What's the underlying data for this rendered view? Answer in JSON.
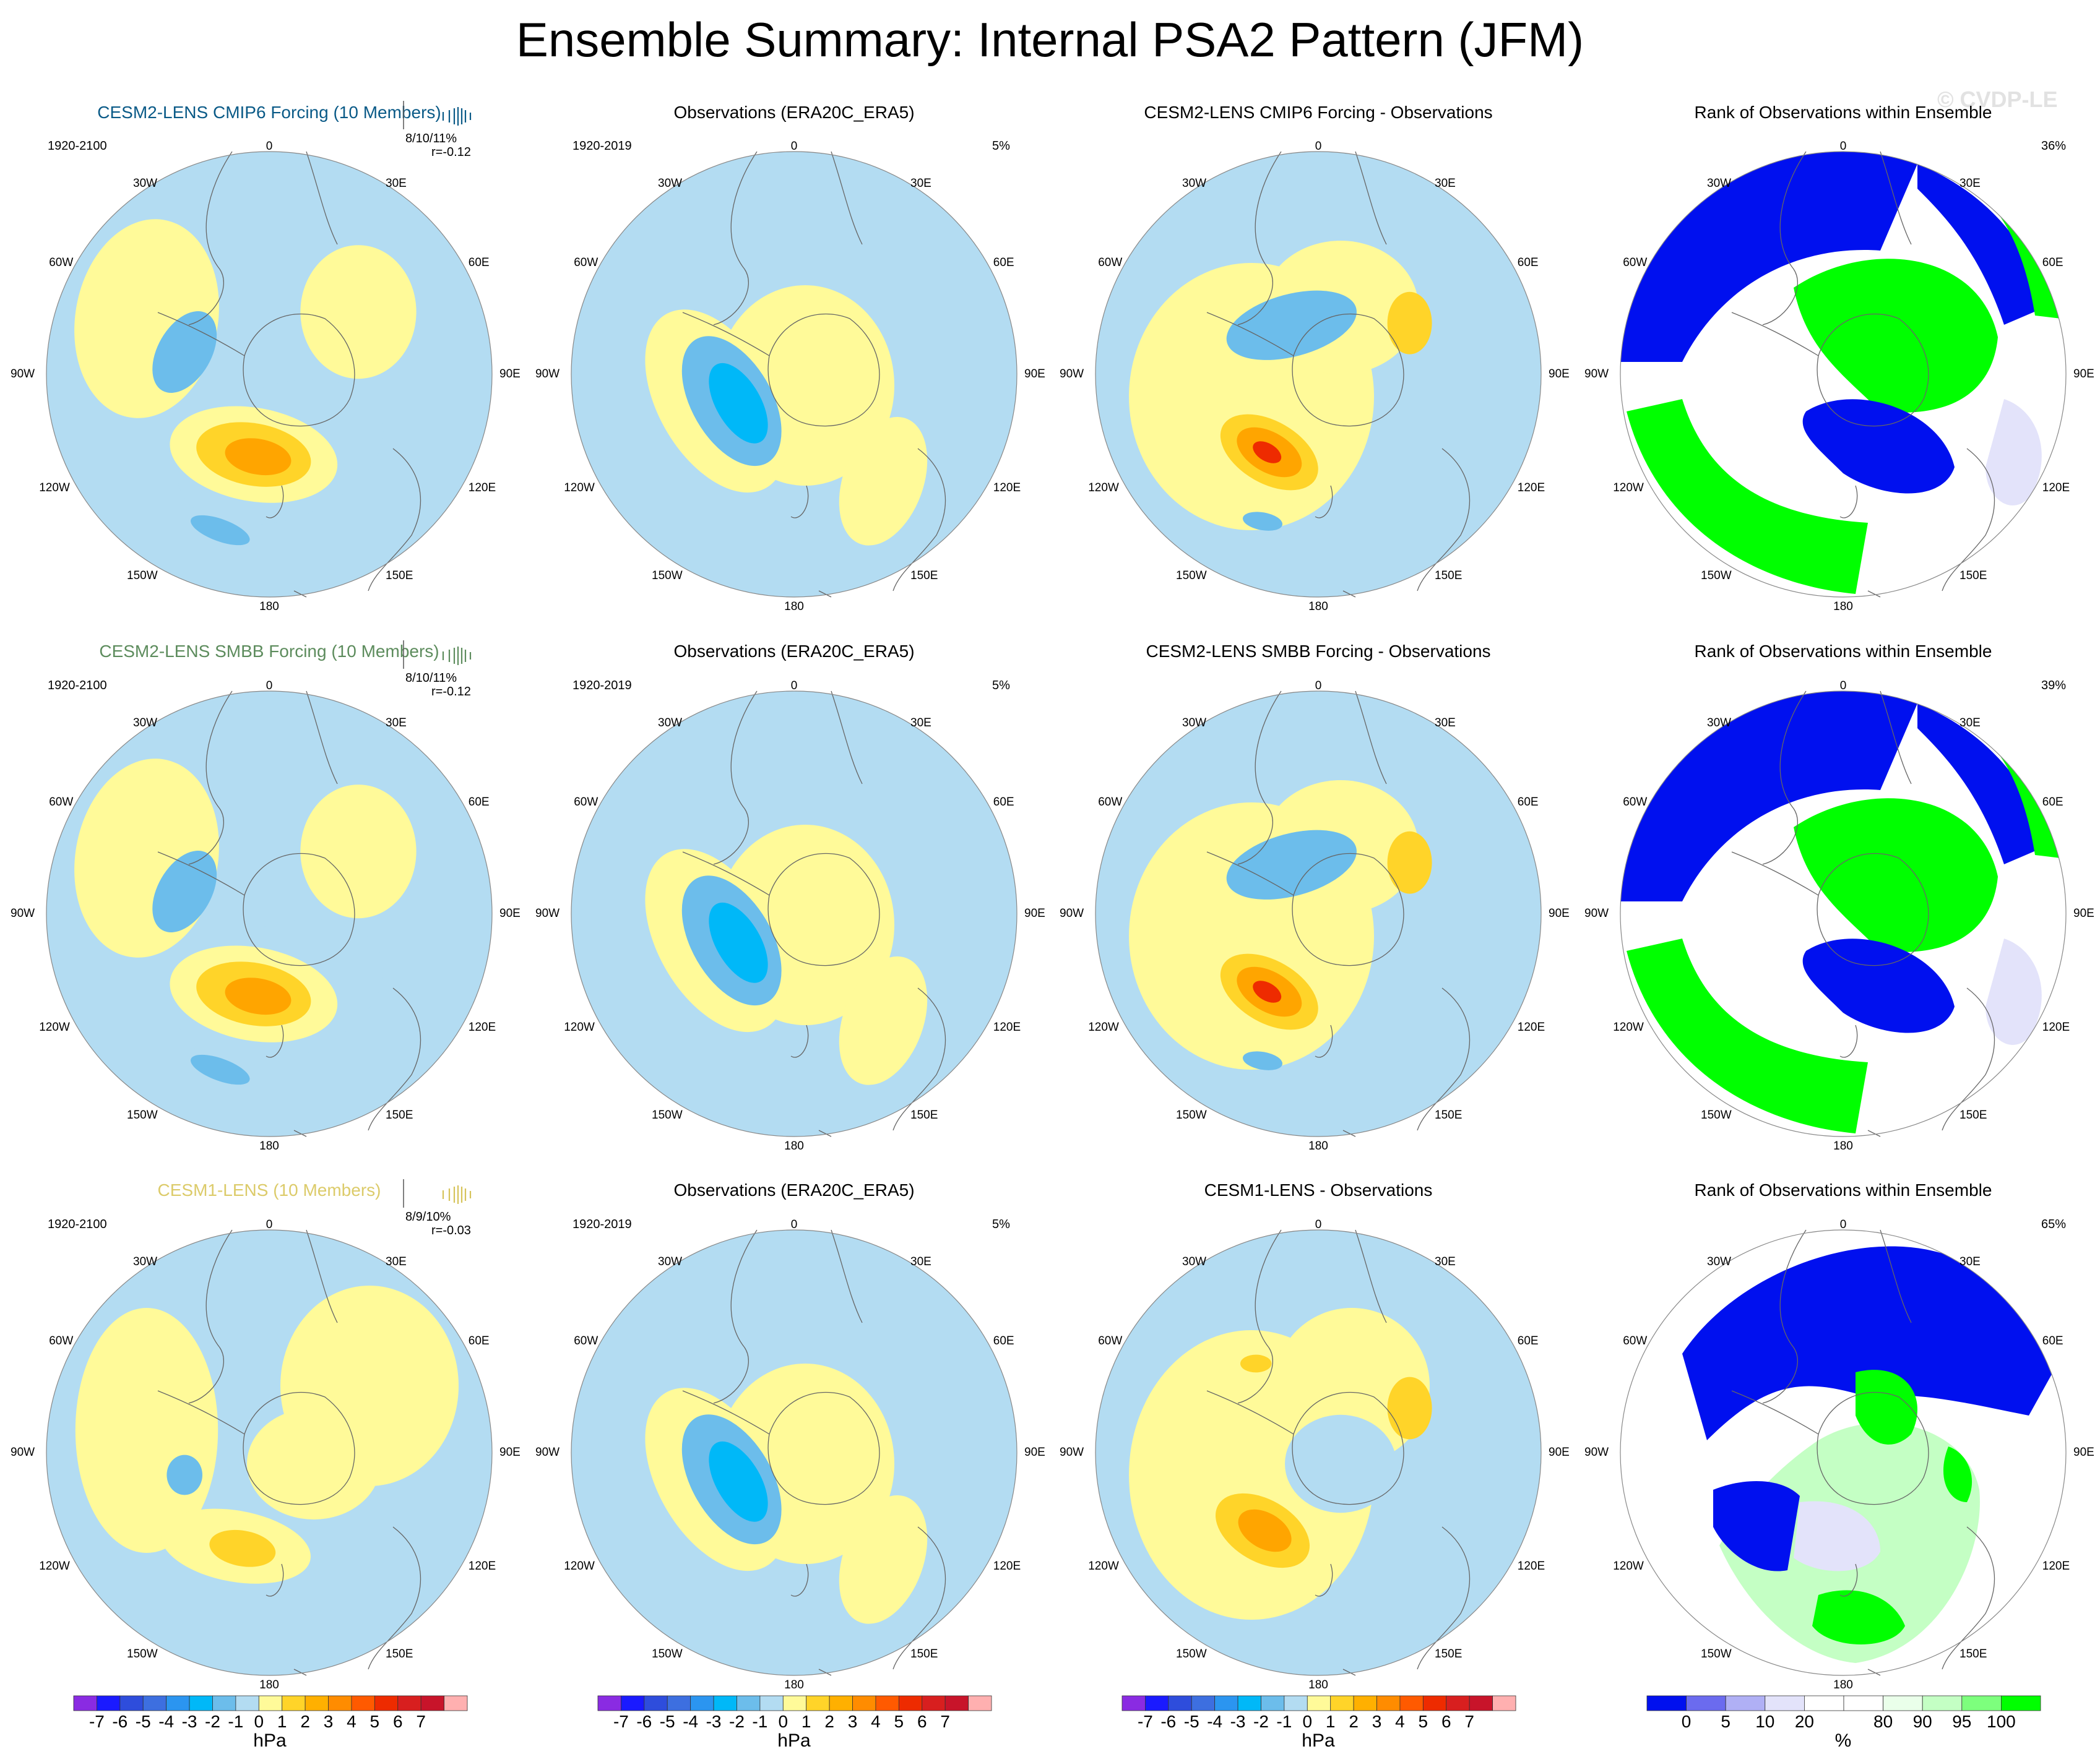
{
  "title": "Ensemble Summary: Internal PSA2 Pattern (JFM)",
  "watermark": "© CVDP-LE",
  "colors": {
    "lightblue": "#b3dcf2",
    "midblue": "#6cbdeb",
    "cyan": "#00b8f8",
    "lightyellow": "#fffa99",
    "gold": "#ffd429",
    "orange": "#ffa500",
    "darkorange": "#ff7000",
    "red": "#ee2b00",
    "rank_blue": "#0010ef",
    "rank_green": "#00ff00",
    "rank_lightgreen": "#c4ffc4",
    "rank_lavender": "#e3e3fa"
  },
  "rows": [
    {
      "model": {
        "title": "CESM2-LENS CMIP6 Forcing (10 Members)",
        "title_color": "#0a5a87",
        "period": "1920-2100",
        "stats": "8/10/11%",
        "corr": "r=-0.12",
        "hist_color": "#0a5a87"
      },
      "obs": {
        "title": "Observations (ERA20C_ERA5)",
        "period": "1920-2019",
        "pct": "5%"
      },
      "diff": {
        "title": "CESM2-LENS CMIP6 Forcing - Observations"
      },
      "rank": {
        "title": "Rank of Observations within Ensemble",
        "pct": "36%"
      }
    },
    {
      "model": {
        "title": "CESM2-LENS SMBB Forcing (10 Members)",
        "title_color": "#5d8c5d",
        "period": "1920-2100",
        "stats": "8/10/11%",
        "corr": "r=-0.12",
        "hist_color": "#5d8c5d"
      },
      "obs": {
        "title": "Observations (ERA20C_ERA5)",
        "period": "1920-2019",
        "pct": "5%"
      },
      "diff": {
        "title": "CESM2-LENS SMBB Forcing - Observations"
      },
      "rank": {
        "title": "Rank of Observations within Ensemble",
        "pct": "39%"
      }
    },
    {
      "model": {
        "title": "CESM1-LENS (10 Members)",
        "title_color": "#dccb6a",
        "period": "1920-2100",
        "stats": "8/9/10%",
        "corr": "r=-0.03",
        "hist_color": "#d6c35a"
      },
      "obs": {
        "title": "Observations (ERA20C_ERA5)",
        "period": "1920-2019",
        "pct": "5%"
      },
      "diff": {
        "title": "CESM1-LENS - Observations"
      },
      "rank": {
        "title": "Rank of Observations within Ensemble",
        "pct": "65%"
      }
    }
  ],
  "lon_labels": {
    "top": "0",
    "bottom": "180",
    "upper_left": "30W",
    "upper_right": "30E",
    "mid_upper_left": "60W",
    "mid_upper_right": "60E",
    "left": "90W",
    "right": "90E",
    "mid_lower_left": "120W",
    "mid_lower_right": "120E",
    "lower_left": "150W",
    "lower_right": "150E"
  },
  "colorbar_hpa": {
    "unit": "hPa",
    "colors": [
      "#8a2be2",
      "#1a1aff",
      "#2e4ddc",
      "#3d6fe0",
      "#2b95f0",
      "#00b8f8",
      "#6cbdeb",
      "#b3dcf2",
      "#fffa99",
      "#ffd429",
      "#ffb000",
      "#ff8c00",
      "#ff5a00",
      "#ee2b00",
      "#d81f1f",
      "#c8142a",
      "#ffb0b0"
    ],
    "ticks": [
      "-7",
      "-6",
      "-5",
      "-4",
      "-3",
      "-2",
      "-1",
      "0",
      "1",
      "2",
      "3",
      "4",
      "5",
      "6",
      "7"
    ]
  },
  "colorbar_rank": {
    "unit": "%",
    "colors": [
      "#0010ef",
      "#6b6bef",
      "#b0b0f5",
      "#e3e3fa",
      "#ffffff",
      "#ffffff",
      "#eaffea",
      "#c4ffc4",
      "#7dff7d",
      "#00ff00"
    ],
    "ticks": [
      "0",
      "5",
      "10",
      "20",
      "80",
      "90",
      "95",
      "100"
    ]
  }
}
